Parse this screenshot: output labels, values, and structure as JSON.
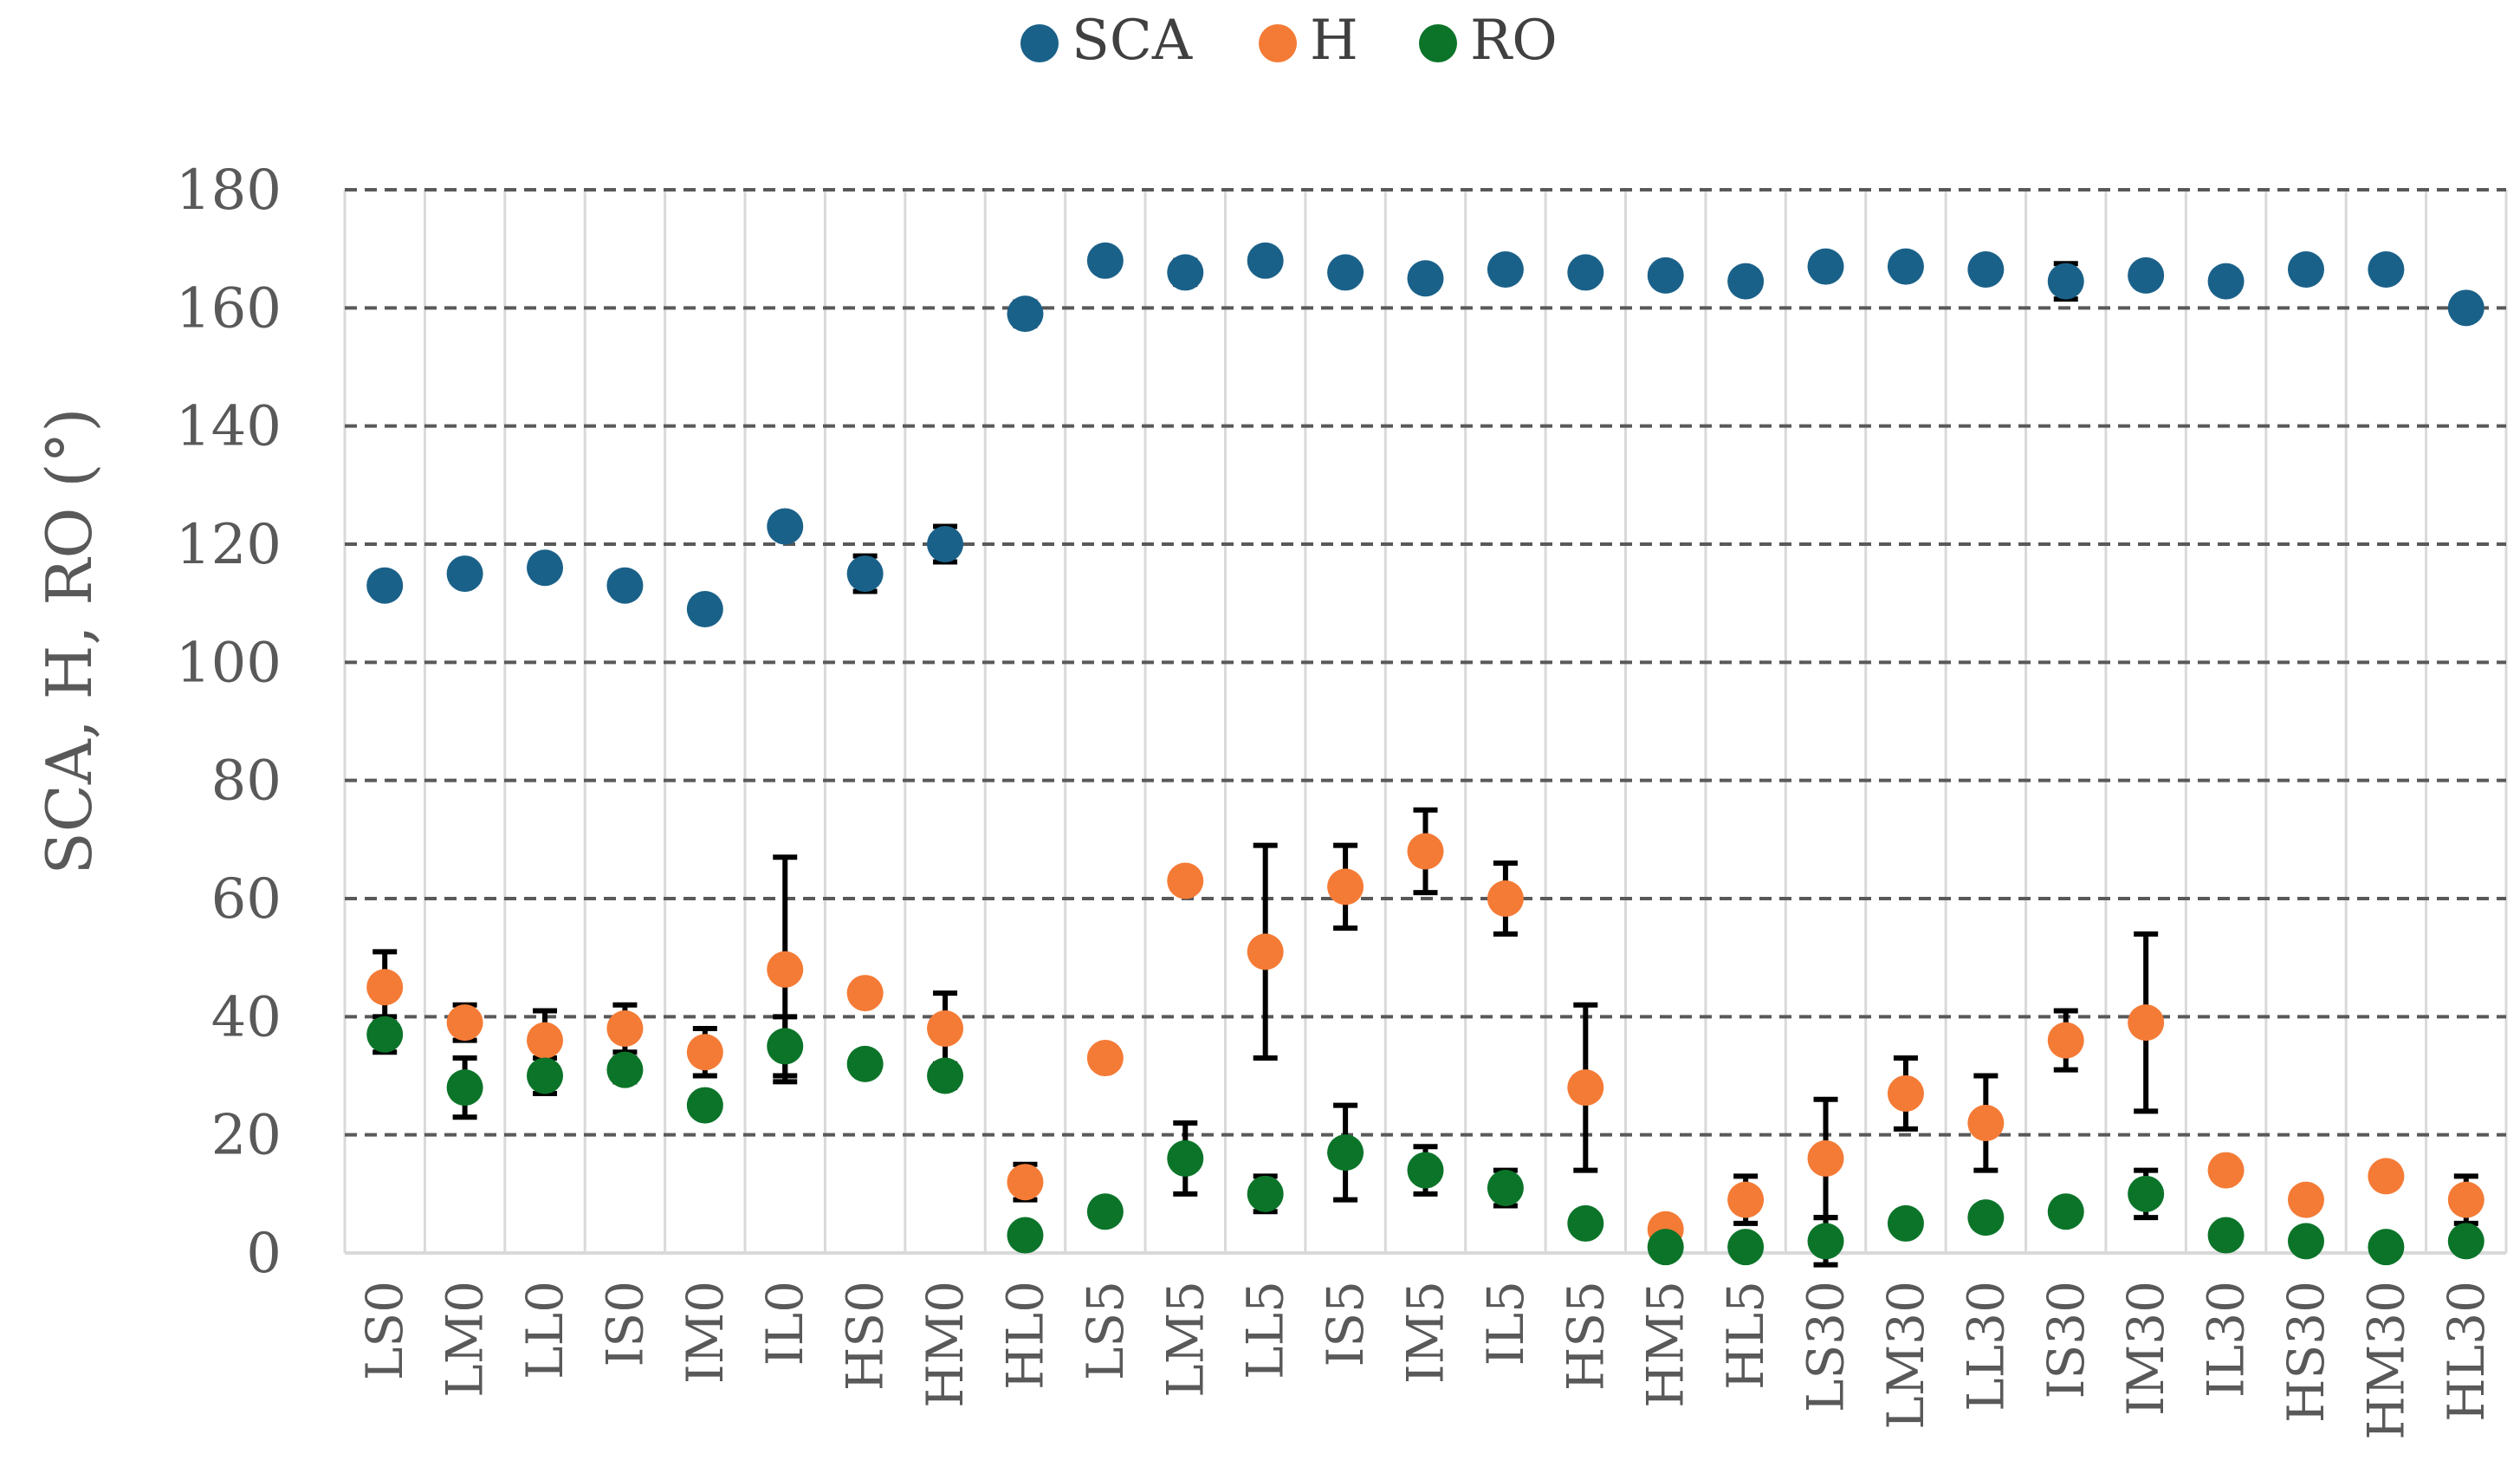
{
  "chart_data": {
    "type": "scatter",
    "title": "",
    "xlabel": "",
    "ylabel": "SCA, H, RO (°)",
    "ylim": [
      0,
      180
    ],
    "yticks": [
      0,
      20,
      40,
      60,
      80,
      100,
      120,
      140,
      160,
      180
    ],
    "grid": "horizontal dashed",
    "legend_position": "top-center",
    "categories": [
      "LS0",
      "LM0",
      "LL0",
      "IS0",
      "IM0",
      "IL0",
      "HS0",
      "HM0",
      "HL0",
      "LS5",
      "LM5",
      "LL5",
      "IS5",
      "IM5",
      "IL5",
      "HS5",
      "HM5",
      "HL5",
      "LS30",
      "LM30",
      "LL30",
      "IS30",
      "IM30",
      "IL30",
      "HS30",
      "HM30",
      "HL30"
    ],
    "series": [
      {
        "name": "SCA",
        "color": "#1a6189",
        "values": [
          113,
          115,
          116,
          113,
          109,
          123,
          115,
          120,
          159,
          168,
          166,
          168,
          166,
          165,
          166.5,
          166,
          165.5,
          164.5,
          167,
          167,
          166.5,
          164.5,
          165.5,
          164.5,
          166.5,
          166.5,
          160
        ],
        "errors": [
          0,
          0,
          0,
          0,
          0,
          1,
          3,
          3,
          2,
          0,
          2,
          0,
          1,
          1,
          0,
          0,
          0,
          1,
          0,
          0,
          0,
          3,
          0,
          0,
          1,
          1,
          0
        ]
      },
      {
        "name": "H",
        "color": "#f47b36",
        "values": [
          45,
          39,
          36,
          38,
          34,
          48,
          44,
          38,
          12,
          33,
          63,
          51,
          62,
          68,
          60,
          28,
          4,
          9,
          16,
          27,
          22,
          36,
          39,
          14,
          9,
          13,
          9
        ],
        "errors": [
          6,
          3,
          5,
          4,
          4,
          19,
          0,
          6,
          3,
          0,
          0,
          18,
          7,
          7,
          6,
          14,
          0,
          4,
          10,
          6,
          8,
          5,
          15,
          0,
          0,
          0,
          4
        ]
      },
      {
        "name": "RO",
        "color": "#0b7429",
        "values": [
          37,
          28,
          30,
          31,
          25,
          35,
          32,
          30,
          3,
          7,
          16,
          10,
          17,
          14,
          11,
          5,
          1,
          1,
          2,
          5,
          6,
          7,
          10,
          3,
          2,
          1,
          2
        ],
        "errors": [
          3,
          5,
          3,
          2,
          0,
          5,
          0,
          2,
          0,
          0,
          6,
          3,
          8,
          4,
          3,
          0,
          0,
          0,
          4,
          0,
          0,
          0,
          4,
          0,
          0,
          0,
          0
        ]
      }
    ]
  }
}
